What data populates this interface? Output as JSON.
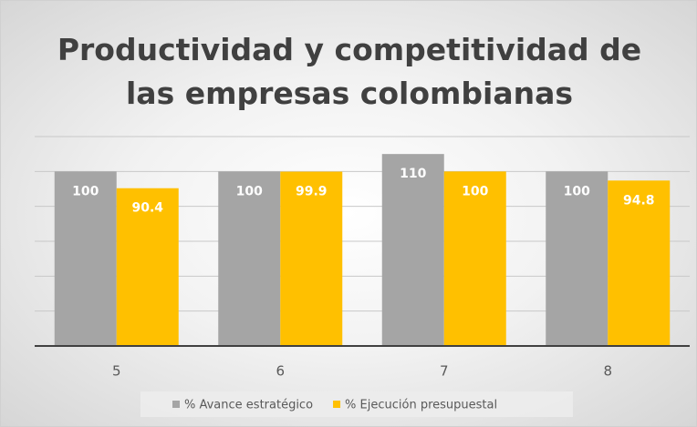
{
  "chart_data": {
    "type": "bar",
    "title": "Productividad y competitividad de las empresas colombianas",
    "categories": [
      "5",
      "6",
      "7",
      "8"
    ],
    "series": [
      {
        "name": "% Avance estratégico",
        "color": "#a5a5a5",
        "values": [
          100,
          100,
          110,
          100
        ]
      },
      {
        "name": "% Ejecución presupuestal",
        "color": "#ffc000",
        "values": [
          90.4,
          99.9,
          100,
          94.8
        ]
      }
    ],
    "ylim": [
      0,
      120
    ],
    "yticks": [
      0,
      20,
      40,
      60,
      80,
      100,
      120
    ],
    "grid": true,
    "legend": "bottom"
  }
}
